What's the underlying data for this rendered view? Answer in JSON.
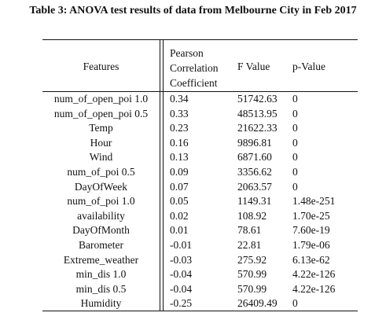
{
  "caption": "Table 3: ANOVA test results of data from Melbourne City in Feb 2017",
  "headers": {
    "features": "Features",
    "pcc_line1": "Pearson",
    "pcc_line2": "Correlation",
    "pcc_line3": "Coefficient",
    "f_value": "F Value",
    "p_value": "p-Value"
  },
  "rows": [
    {
      "feature": "num_of_open_poi 1.0",
      "pcc": "0.34",
      "f": "51742.63",
      "p": "0"
    },
    {
      "feature": "num_of_open_poi 0.5",
      "pcc": "0.33",
      "f": "48513.95",
      "p": "0"
    },
    {
      "feature": "Temp",
      "pcc": "0.23",
      "f": "21622.33",
      "p": "0"
    },
    {
      "feature": "Hour",
      "pcc": "0.16",
      "f": "9896.81",
      "p": "0"
    },
    {
      "feature": "Wind",
      "pcc": "0.13",
      "f": "6871.60",
      "p": "0"
    },
    {
      "feature": "num_of_poi 0.5",
      "pcc": "0.09",
      "f": "3356.62",
      "p": "0"
    },
    {
      "feature": "DayOfWeek",
      "pcc": "0.07",
      "f": "2063.57",
      "p": "0"
    },
    {
      "feature": "num_of_poi 1.0",
      "pcc": "0.05",
      "f": "1149.31",
      "p": "1.48e-251"
    },
    {
      "feature": "availability",
      "pcc": "0.02",
      "f": "108.92",
      "p": "1.70e-25"
    },
    {
      "feature": "DayOfMonth",
      "pcc": "0.01",
      "f": "78.61",
      "p": "7.60e-19"
    },
    {
      "feature": "Barometer",
      "pcc": "-0.01",
      "f": "22.81",
      "p": "1.79e-06"
    },
    {
      "feature": "Extreme_weather",
      "pcc": "-0.03",
      "f": "275.92",
      "p": "6.13e-62"
    },
    {
      "feature": "min_dis 1.0",
      "pcc": "-0.04",
      "f": "570.99",
      "p": "4.22e-126"
    },
    {
      "feature": "min_dis 0.5",
      "pcc": "-0.04",
      "f": "570.99",
      "p": "4.22e-126"
    },
    {
      "feature": "Humidity",
      "pcc": "-0.25",
      "f": "26409.49",
      "p": "0"
    }
  ]
}
